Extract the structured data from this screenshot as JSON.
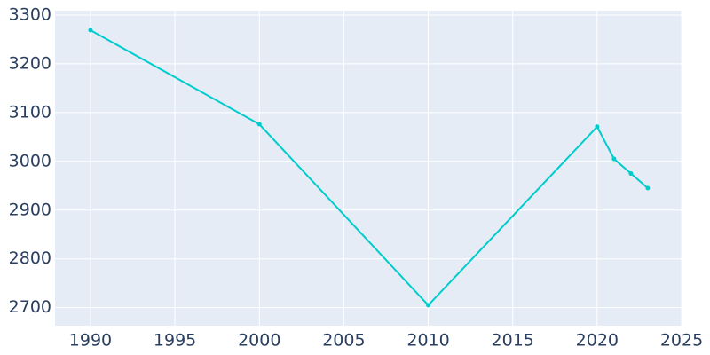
{
  "chart_data": {
    "type": "line",
    "x": [
      1990,
      2000,
      2010,
      2020,
      2021,
      2022,
      2023
    ],
    "series": [
      {
        "color": "#00cccc",
        "values": [
          3269,
          3076,
          2705,
          3071,
          3005,
          2975,
          2945
        ]
      }
    ],
    "xlim": [
      1987.9,
      2025
    ],
    "xticks": [
      1990,
      1995,
      2000,
      2005,
      2010,
      2015,
      2020,
      2025
    ],
    "ylim": [
      2663,
      3309
    ],
    "yticks": [
      2700,
      2800,
      2900,
      3000,
      3100,
      3200,
      3300
    ],
    "grid": true
  }
}
